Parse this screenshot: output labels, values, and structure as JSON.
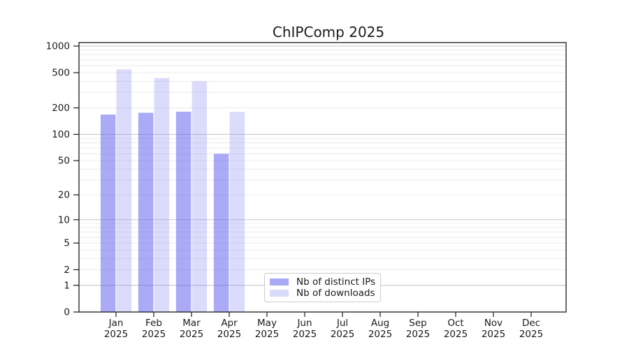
{
  "chart_data": {
    "type": "bar",
    "title": "ChIPComp 2025",
    "categories": [
      {
        "month": "Jan",
        "year": "2025"
      },
      {
        "month": "Feb",
        "year": "2025"
      },
      {
        "month": "Mar",
        "year": "2025"
      },
      {
        "month": "Apr",
        "year": "2025"
      },
      {
        "month": "May",
        "year": "2025"
      },
      {
        "month": "Jun",
        "year": "2025"
      },
      {
        "month": "Jul",
        "year": "2025"
      },
      {
        "month": "Aug",
        "year": "2025"
      },
      {
        "month": "Sep",
        "year": "2025"
      },
      {
        "month": "Oct",
        "year": "2025"
      },
      {
        "month": "Nov",
        "year": "2025"
      },
      {
        "month": "Dec",
        "year": "2025"
      }
    ],
    "series": [
      {
        "name": "Nb of distinct IPs",
        "color": "rgba(100,100,240,0.55)",
        "legend_color": "#a9a9f5",
        "values": [
          168,
          176,
          181,
          60,
          null,
          null,
          null,
          null,
          null,
          null,
          null,
          null
        ]
      },
      {
        "name": "Nb of downloads",
        "color": "rgba(125,125,242,0.28)",
        "legend_color": "#dadafb",
        "values": [
          545,
          435,
          400,
          180,
          null,
          null,
          null,
          null,
          null,
          null,
          null,
          null
        ]
      }
    ],
    "y_axis": {
      "scale": "log1p",
      "ticks": [
        0,
        1,
        2,
        5,
        10,
        20,
        50,
        100,
        200,
        500,
        1000
      ],
      "ylim": [
        0,
        1095
      ],
      "major_grid_values": [
        1,
        10,
        100,
        1000
      ],
      "minor_grid_values": [
        2,
        3,
        4,
        5,
        6,
        7,
        8,
        9,
        20,
        30,
        40,
        50,
        60,
        70,
        80,
        90,
        200,
        300,
        400,
        500,
        600,
        700,
        800,
        900
      ]
    },
    "grid": true,
    "legend_position": "lower center-left",
    "colors": {
      "background": "#ffffff",
      "axis_frame": "#1a1a1a",
      "tick_text": "#1a1a1a",
      "major_grid": "#c6c6c6",
      "minor_grid": "#ececec"
    }
  }
}
